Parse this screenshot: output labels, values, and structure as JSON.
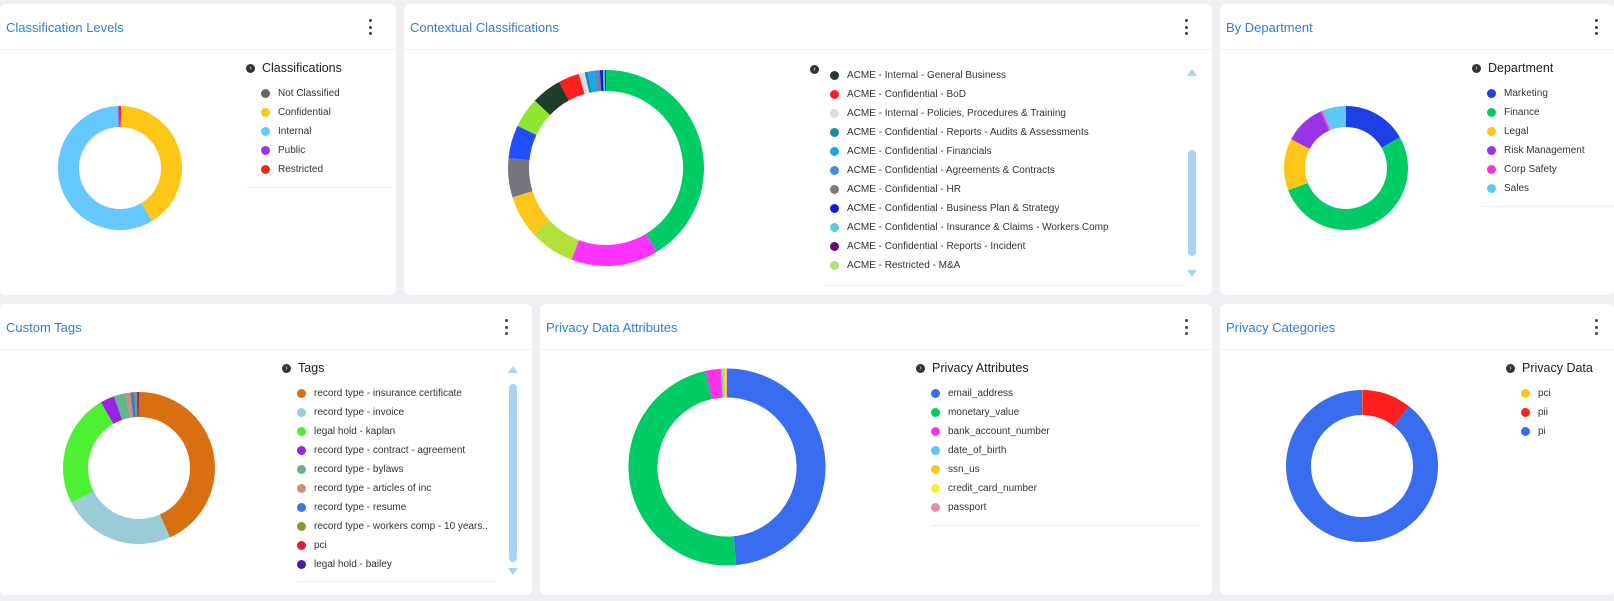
{
  "cards": {
    "classification_levels": {
      "title": "Classification Levels",
      "legend_title": "Classifications"
    },
    "contextual_classifications": {
      "title": "Contextual Classifications",
      "legend_title": ""
    },
    "by_department": {
      "title": "By Department",
      "legend_title": "Department"
    },
    "custom_tags": {
      "title": "Custom Tags",
      "legend_title": "Tags"
    },
    "privacy_data_attributes": {
      "title": "Privacy Data Attributes",
      "legend_title": "Privacy Attributes"
    },
    "privacy_categories": {
      "title": "Privacy Categories",
      "legend_title": "Privacy Data"
    }
  },
  "legend_toggle_glyph": "›",
  "chart_data": [
    {
      "id": "classification_levels",
      "type": "pie",
      "title": "Classification Levels",
      "legend_title": "Classifications",
      "legend_position": "right",
      "categories": [
        "Not Classified",
        "Confidential",
        "Internal",
        "Public",
        "Restricted"
      ],
      "values": [
        0.3,
        41,
        58.2,
        0.2,
        0.3
      ],
      "colors": [
        "#666666",
        "#ffc61a",
        "#66c8ff",
        "#9933ff",
        "#ff1f1f"
      ],
      "start_order": [
        "Restricted",
        "Confidential",
        "Internal",
        "Public",
        "Not Classified"
      ]
    },
    {
      "id": "contextual_classifications",
      "type": "pie",
      "title": "Contextual Classifications",
      "legend_position": "right",
      "categories": [
        "ACME - Internal - General Business",
        "ACME - Confidential - BoD",
        "ACME - Internal - Policies, Procedures & Training",
        "ACME - Confidential - Reports - Audits & Assessments",
        "ACME - Confidential - Financials",
        "ACME - Confidential - Agreements & Contracts",
        "ACME - Confidential - HR",
        "ACME - Confidential - Business Plan & Strategy",
        "ACME - Confidential - Insurance & Claims - Workers Comp",
        "ACME - Confidential - Reports - Incident",
        "ACME - Restricted - M&A"
      ],
      "colors": [
        "#1f3d2b",
        "#ff1f1f",
        "#dddddd",
        "#1a8ca6",
        "#1aa7ec",
        "#3a8fe0",
        "#7a7a85",
        "#1a1ad6",
        "#5ec8e6",
        "#6b0a6b",
        "#a6e67a"
      ],
      "slices": [
        {
          "label": "Unlisted (green)",
          "value": 41.5,
          "color": "#00cc66"
        },
        {
          "label": "Unlisted (magenta)",
          "value": 14.5,
          "color": "#ff33ff"
        },
        {
          "label": "Unlisted (lime)",
          "value": 7.5,
          "color": "#b3e03a"
        },
        {
          "label": "Unlisted (yellow)",
          "value": 7,
          "color": "#ffc61a"
        },
        {
          "label": "Unlisted (gray)",
          "value": 6.5,
          "color": "#757580"
        },
        {
          "label": "Unlisted (blue)",
          "value": 5.5,
          "color": "#1f4fff"
        },
        {
          "label": "Unlisted (light green)",
          "value": 5,
          "color": "#8fe62e"
        },
        {
          "label": "ACME - Internal - General Business",
          "value": 5,
          "color": "#1f3d2b"
        },
        {
          "label": "ACME - Confidential - BoD",
          "value": 3.5,
          "color": "#ff1f1f"
        },
        {
          "label": "ACME - Internal - Policies, Procedures & Training",
          "value": 1,
          "color": "#dddddd"
        },
        {
          "label": "ACME - Confidential - Reports - Audits & Assessments",
          "value": 0.5,
          "color": "#1a8ca6"
        },
        {
          "label": "ACME - Confidential - Financials",
          "value": 1,
          "color": "#1aa7ec"
        },
        {
          "label": "ACME - Confidential - Agreements & Contracts",
          "value": 0.5,
          "color": "#3a8fe0"
        },
        {
          "label": "ACME - Confidential - HR",
          "value": 0.5,
          "color": "#7a7a85"
        },
        {
          "label": "ACME - Confidential - Business Plan & Strategy",
          "value": 0.5,
          "color": "#1a1ad6"
        },
        {
          "label": "ACME - Confidential - Insurance & Claims - Workers Comp",
          "value": 0.3,
          "color": "#5ec8e6"
        },
        {
          "label": "ACME - Confidential - Reports - Incident",
          "value": 0.2,
          "color": "#6b0a6b"
        }
      ]
    },
    {
      "id": "by_department",
      "type": "pie",
      "title": "By Department",
      "legend_title": "Department",
      "legend_position": "right",
      "categories": [
        "Marketing",
        "Finance",
        "Legal",
        "Risk Management",
        "Corp Safety",
        "Sales"
      ],
      "values": [
        16,
        50,
        13,
        10,
        0.5,
        6
      ],
      "colors": [
        "#1f3fe6",
        "#00cc66",
        "#ffc61a",
        "#9933e6",
        "#ff33cc",
        "#5ec8f5"
      ]
    },
    {
      "id": "custom_tags",
      "type": "pie",
      "title": "Custom Tags",
      "legend_title": "Tags",
      "legend_position": "right",
      "categories": [
        "record type - insurance certificate",
        "record type - invoice",
        "legal hold - kaplan",
        "record type - contract - agreement",
        "record type - bylaws",
        "record type - articles of inc",
        "record type - resume",
        "record type - workers comp - 10 years...",
        "pci",
        "legal hold - bailey"
      ],
      "values": [
        43,
        24,
        24,
        3,
        2.5,
        1,
        0.8,
        0.5,
        0.3,
        0.2
      ],
      "colors": [
        "#d9700f",
        "#99ccd6",
        "#4df033",
        "#9922e6",
        "#66b38c",
        "#cc8f73",
        "#3a75e6",
        "#8c9933",
        "#e61a33",
        "#4d1a99"
      ]
    },
    {
      "id": "privacy_data_attributes",
      "type": "pie",
      "title": "Privacy Data Attributes",
      "legend_title": "Privacy Attributes",
      "legend_position": "right",
      "categories": [
        "email_address",
        "monetary_value",
        "bank_account_number",
        "date_of_birth",
        "ssn_us",
        "credit_card_number",
        "passport"
      ],
      "values": [
        48.5,
        48,
        2.5,
        0.3,
        0.4,
        0.2,
        0.1
      ],
      "colors": [
        "#3a6cf0",
        "#00cc66",
        "#ff33e6",
        "#5ec8f5",
        "#ffc61a",
        "#f5f033",
        "#e68cb3"
      ]
    },
    {
      "id": "privacy_categories",
      "type": "pie",
      "title": "Privacy Categories",
      "legend_title": "Privacy Data",
      "legend_position": "right",
      "categories": [
        "pci",
        "pii",
        "pi"
      ],
      "values": [
        0.1,
        10.5,
        89.4
      ],
      "colors": [
        "#ffc61a",
        "#ff1f1f",
        "#3a6cf0"
      ]
    }
  ]
}
